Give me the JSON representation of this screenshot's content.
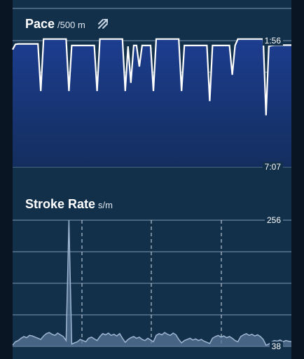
{
  "chart_data": [
    {
      "type": "area",
      "title": "Pace",
      "unit": "/500 m",
      "y_inverted": true,
      "ylim": [
        "1:56",
        "7:07"
      ],
      "tick_labels": [
        "1:56",
        "7:07"
      ],
      "grid": true,
      "series": [
        {
          "x": [
            0,
            1,
            2,
            3,
            4,
            5,
            6,
            7,
            8,
            9,
            10,
            11,
            12,
            13,
            14,
            15,
            16,
            17,
            18,
            19,
            20,
            21,
            22,
            23,
            24,
            25,
            26,
            27,
            28,
            29,
            30,
            31,
            32,
            33,
            34,
            35,
            36,
            37,
            38,
            39,
            40,
            41,
            42,
            43,
            44,
            45,
            46,
            47,
            48,
            49,
            50,
            51,
            52,
            53,
            54,
            55,
            56,
            57,
            58,
            59,
            60,
            61,
            62,
            63,
            64,
            65,
            66,
            67,
            68,
            69,
            70,
            71,
            72,
            73,
            74,
            75,
            76,
            77,
            78,
            79,
            80,
            81,
            82,
            83,
            84,
            85,
            86,
            87,
            88,
            89,
            90,
            91,
            92,
            93,
            94,
            95,
            96,
            97,
            98,
            99
          ],
          "y_seconds": [
            138,
            125,
            124,
            124,
            124,
            124,
            124,
            124,
            124,
            124,
            240,
            112,
            112,
            112,
            112,
            112,
            112,
            112,
            112,
            112,
            240,
            128,
            128,
            128,
            128,
            128,
            128,
            128,
            128,
            128,
            240,
            112,
            112,
            112,
            112,
            112,
            112,
            112,
            112,
            112,
            240,
            130,
            220,
            128,
            128,
            180,
            128,
            128,
            128,
            128,
            240,
            112,
            112,
            112,
            112,
            112,
            112,
            112,
            112,
            112,
            240,
            128,
            128,
            128,
            128,
            128,
            128,
            128,
            128,
            128,
            265,
            128,
            128,
            128,
            128,
            128,
            128,
            128,
            200,
            128,
            112,
            112,
            112,
            112,
            112,
            112,
            112,
            112,
            112,
            112,
            300,
            130,
            128,
            127,
            127,
            127,
            127,
            127,
            127,
            127
          ]
        }
      ]
    },
    {
      "type": "area",
      "title": "Stroke Rate",
      "unit": "s/m",
      "ylim": [
        38,
        256
      ],
      "tick_labels": [
        "256",
        "38"
      ],
      "grid": true,
      "series": [
        {
          "x": [
            0,
            1,
            2,
            3,
            4,
            5,
            6,
            7,
            8,
            9,
            10,
            11,
            12,
            13,
            14,
            15,
            16,
            17,
            18,
            19,
            20,
            21,
            22,
            23,
            24,
            25,
            26,
            27,
            28,
            29,
            30,
            31,
            32,
            33,
            34,
            35,
            36,
            37,
            38,
            39,
            40,
            41,
            42,
            43,
            44,
            45,
            46,
            47,
            48,
            49,
            50,
            51,
            52,
            53,
            54,
            55,
            56,
            57,
            58,
            59,
            60,
            61,
            62,
            63,
            64,
            65,
            66,
            67,
            68,
            69,
            70,
            71,
            72,
            73,
            74,
            75,
            76,
            77,
            78,
            79,
            80,
            81,
            82,
            83,
            84,
            85,
            86,
            87,
            88,
            89,
            90,
            91,
            92,
            93,
            94,
            95,
            96,
            97,
            98,
            99
          ],
          "y": [
            40,
            46,
            48,
            52,
            55,
            53,
            57,
            56,
            54,
            52,
            50,
            56,
            60,
            62,
            59,
            57,
            61,
            58,
            55,
            48,
            256,
            42,
            44,
            46,
            50,
            48,
            46,
            52,
            54,
            51,
            48,
            55,
            60,
            58,
            61,
            57,
            59,
            56,
            60,
            52,
            45,
            50,
            53,
            55,
            52,
            54,
            50,
            48,
            52,
            49,
            46,
            57,
            60,
            58,
            62,
            59,
            57,
            61,
            58,
            50,
            44,
            48,
            50,
            52,
            49,
            51,
            48,
            50,
            47,
            45,
            43,
            52,
            55,
            57,
            54,
            56,
            53,
            55,
            52,
            48,
            46,
            55,
            58,
            60,
            57,
            59,
            56,
            58,
            55,
            50,
            40,
            42,
            46,
            48,
            47,
            49,
            46,
            48,
            47,
            46
          ]
        }
      ]
    }
  ],
  "header": {
    "pace_title": "Pace",
    "pace_unit": "/500 m",
    "stroke_title": "Stroke Rate",
    "stroke_unit": "s/m",
    "swap_icon": "swap-units-icon"
  },
  "colors": {
    "background": "#13304a",
    "pace_fill_top": "#1d3d8f",
    "pace_fill_bottom": "#132e5e",
    "stroke_fill": "#5b7698",
    "line": "#ffffff"
  }
}
